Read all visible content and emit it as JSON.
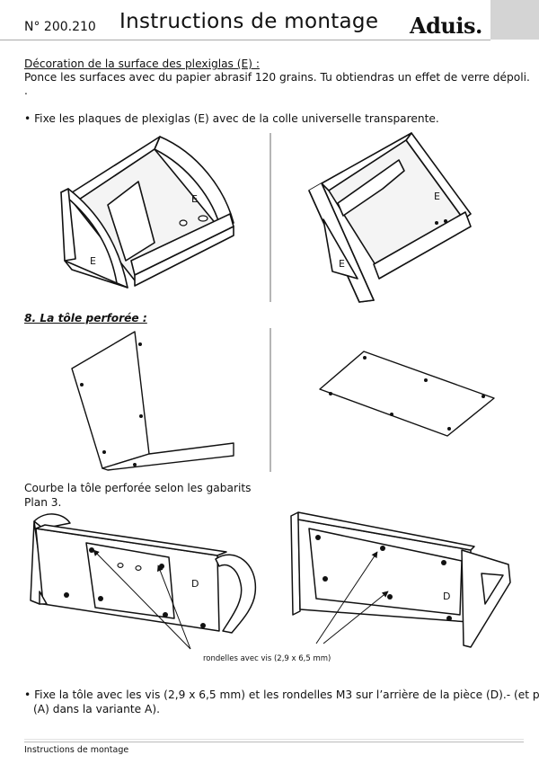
{
  "header": {
    "number": "N° 200.210",
    "title": "Instructions de montage",
    "logo": "Aduis."
  },
  "section_e": {
    "heading": "Décoration de la surface des plexiglas (E) :",
    "line1": "Ponce les surfaces avec du papier abrasif 120 grains. Tu obtiendras un effet de verre dépoli.",
    "dot": ".",
    "bullet": "• Fixe les plaques de plexiglas (E) avec de la colle universelle transparente."
  },
  "labels": {
    "e": "E",
    "d": "D"
  },
  "section8": {
    "heading": "8. La tôle perforée :",
    "bend_line1": "Courbe la tôle perforée selon les gabarits",
    "bend_line2": "Plan 3.",
    "callout": "rondelles avec vis (2,9 x 6,5 mm)",
    "fix_line1": "• Fixe la tôle avec les vis (2,9 x 6,5 mm) et les rondelles M3 sur l’arrière de la pièce (D).- (et pièce",
    "fix_line2": "(A) dans la variante A)."
  },
  "footer": {
    "text": "Instructions de montage"
  }
}
